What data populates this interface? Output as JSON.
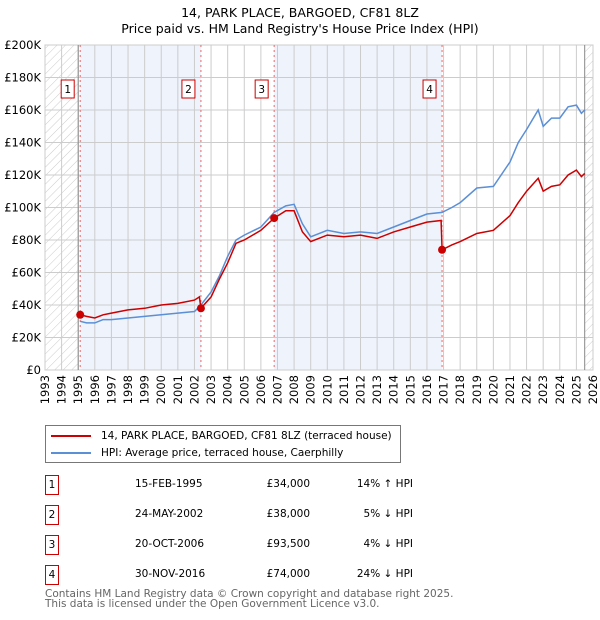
{
  "title": "14, PARK PLACE, BARGOED, CF81 8LZ",
  "subtitle": "Price paid vs. HM Land Registry's House Price Index (HPI)",
  "chart_data": {
    "type": "line",
    "xlim": [
      1993,
      2026
    ],
    "ylim": [
      0,
      200000
    ],
    "x_ticks": [
      "1993",
      "1994",
      "1995",
      "1996",
      "1997",
      "1998",
      "1999",
      "2000",
      "2001",
      "2002",
      "2003",
      "2004",
      "2005",
      "2006",
      "2007",
      "2008",
      "2009",
      "2010",
      "2011",
      "2012",
      "2013",
      "2014",
      "2015",
      "2016",
      "2017",
      "2018",
      "2019",
      "2020",
      "2021",
      "2022",
      "2023",
      "2024",
      "2025",
      "2026"
    ],
    "y_ticks": [
      {
        "v": 0,
        "label": "£0"
      },
      {
        "v": 20000,
        "label": "£20K"
      },
      {
        "v": 40000,
        "label": "£40K"
      },
      {
        "v": 60000,
        "label": "£60K"
      },
      {
        "v": 80000,
        "label": "£80K"
      },
      {
        "v": 100000,
        "label": "£100K"
      },
      {
        "v": 120000,
        "label": "£120K"
      },
      {
        "v": 140000,
        "label": "£140K"
      },
      {
        "v": 160000,
        "label": "£160K"
      },
      {
        "v": 180000,
        "label": "£180K"
      },
      {
        "v": 200000,
        "label": "£200K"
      }
    ],
    "grid": true,
    "shaded_ranges": [
      [
        1995.12,
        2002.39
      ],
      [
        2006.8,
        2016.91
      ]
    ],
    "hatched_ranges": [
      [
        1993,
        1995
      ],
      [
        2025.5,
        2026
      ]
    ],
    "series": [
      {
        "name": "14, PARK PLACE, BARGOED, CF81 8LZ (terraced house)",
        "color": "#cc0000",
        "x": [
          1995.12,
          1995.5,
          1996,
          1996.5,
          1997,
          1998,
          1999,
          2000,
          2001,
          2002,
          2002.3,
          2002.39,
          2003,
          2003.5,
          2004,
          2004.5,
          2005,
          2006,
          2006.8,
          2007.5,
          2008,
          2008.5,
          2009,
          2010,
          2011,
          2012,
          2013,
          2014,
          2015,
          2016,
          2016.85,
          2016.91,
          2017.5,
          2018,
          2019,
          2020,
          2021,
          2021.5,
          2022,
          2022.7,
          2023,
          2023.5,
          2024,
          2024.5,
          2025,
          2025.3,
          2025.5
        ],
        "y": [
          34000,
          33000,
          32000,
          34000,
          35000,
          37000,
          38000,
          40000,
          41000,
          43000,
          45000,
          38000,
          45000,
          56000,
          66000,
          78000,
          80000,
          86000,
          93500,
          98000,
          98000,
          85000,
          79000,
          83000,
          82000,
          83000,
          81000,
          85000,
          88000,
          91000,
          92000,
          74000,
          77000,
          79000,
          84000,
          86000,
          95000,
          103000,
          110000,
          118000,
          110000,
          113000,
          114000,
          120000,
          123000,
          119000,
          121000
        ]
      },
      {
        "name": "HPI: Average price, terraced house, Caerphilly",
        "color": "#5b8fd6",
        "x": [
          1995.12,
          1995.5,
          1996,
          1996.5,
          1997,
          1998,
          1999,
          2000,
          2001,
          2002,
          2002.39,
          2003,
          2003.5,
          2004,
          2004.5,
          2005,
          2006,
          2006.8,
          2007.5,
          2008,
          2008.5,
          2009,
          2010,
          2011,
          2012,
          2013,
          2014,
          2015,
          2016,
          2016.91,
          2017.5,
          2018,
          2019,
          2020,
          2021,
          2021.5,
          2022,
          2022.7,
          2023,
          2023.5,
          2024,
          2024.5,
          2025,
          2025.3,
          2025.5
        ],
        "y": [
          30000,
          29000,
          29000,
          31000,
          31000,
          32000,
          33000,
          34000,
          35000,
          36000,
          40000,
          48000,
          58000,
          70000,
          80000,
          83000,
          88000,
          97000,
          101000,
          102000,
          90000,
          82000,
          86000,
          84000,
          85000,
          84000,
          88000,
          92000,
          96000,
          97000,
          100000,
          103000,
          112000,
          113000,
          128000,
          140000,
          148000,
          160000,
          150000,
          155000,
          155000,
          162000,
          163000,
          158000,
          160000
        ]
      }
    ],
    "sales": [
      {
        "n": "1",
        "x": 1995.12,
        "y": 34000
      },
      {
        "n": "2",
        "x": 2002.39,
        "y": 38000
      },
      {
        "n": "3",
        "x": 2006.8,
        "y": 93500
      },
      {
        "n": "4",
        "x": 2016.91,
        "y": 74000
      }
    ]
  },
  "legend": {
    "property": "14, PARK PLACE, BARGOED, CF81 8LZ (terraced house)",
    "hpi": "HPI: Average price, terraced house, Caerphilly"
  },
  "transactions": [
    {
      "n": "1",
      "date": "15-FEB-1995",
      "price": "£34,000",
      "hpi": "14% ↑ HPI"
    },
    {
      "n": "2",
      "date": "24-MAY-2002",
      "price": "£38,000",
      "hpi": "5% ↓ HPI"
    },
    {
      "n": "3",
      "date": "20-OCT-2006",
      "price": "£93,500",
      "hpi": "4% ↓ HPI"
    },
    {
      "n": "4",
      "date": "30-NOV-2016",
      "price": "£74,000",
      "hpi": "24% ↓ HPI"
    }
  ],
  "footer": {
    "line1": "Contains HM Land Registry data © Crown copyright and database right 2025.",
    "line2": "This data is licensed under the Open Government Licence v3.0."
  }
}
